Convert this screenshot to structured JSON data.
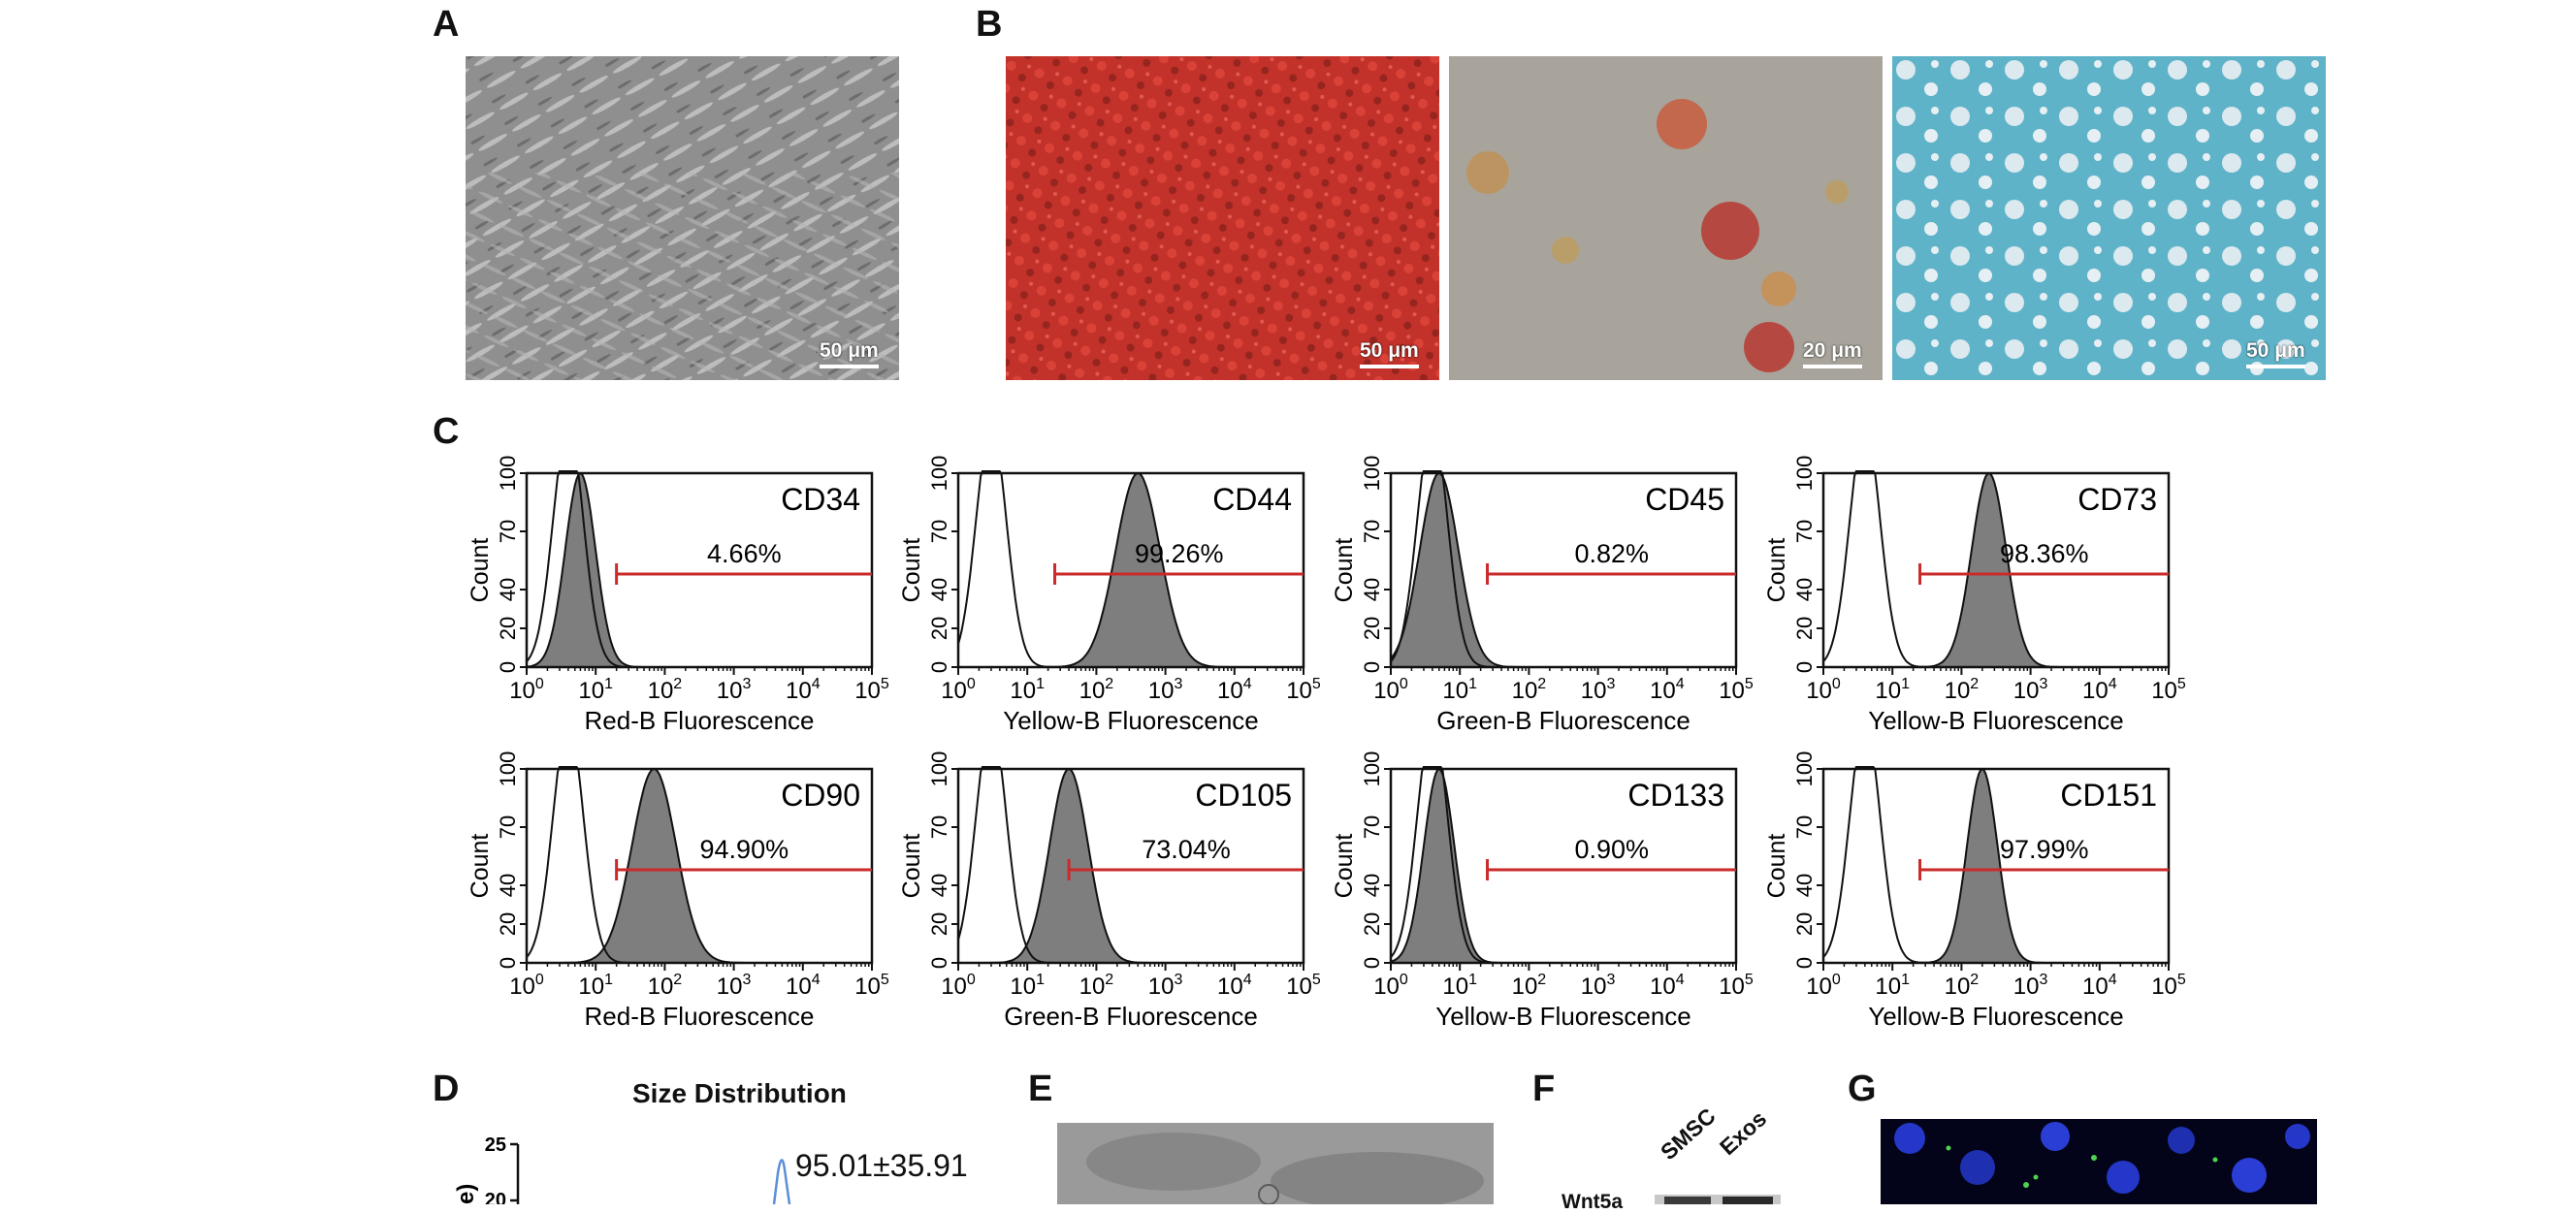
{
  "panels": {
    "A": "A",
    "B": "B",
    "C": "C",
    "D": "D",
    "E": "E",
    "F": "F",
    "G": "G"
  },
  "micrographs": {
    "a": {
      "scale": "50 μm",
      "bg": "#8f8f8f"
    },
    "b1": {
      "scale": "50 μm",
      "bg": "#c2322a"
    },
    "b2": {
      "scale": "20 μm",
      "bg": "#a8a49b"
    },
    "b3": {
      "scale": "50 μm",
      "bg": "#5fb3c8"
    }
  },
  "chart_data": [
    {
      "type": "area",
      "marker": "CD34",
      "percent": "4.66%",
      "ylabel": "Count",
      "xlabel": "Red-B Fluorescence",
      "yticks": [
        "0",
        "20",
        "40",
        "70",
        "100"
      ],
      "xscale": "log",
      "xlim": [
        1,
        100000
      ],
      "control_peak": 4,
      "sample_peak": 6,
      "sample_width": 0.22,
      "gate_start": 20
    },
    {
      "type": "area",
      "marker": "CD44",
      "percent": "99.26%",
      "ylabel": "Count",
      "xlabel": "Yellow-B Fluorescence",
      "yticks": [
        "0",
        "20",
        "40",
        "70",
        "100"
      ],
      "xscale": "log",
      "xlim": [
        1,
        100000
      ],
      "control_peak": 3,
      "sample_peak": 400,
      "sample_width": 0.32,
      "gate_start": 25
    },
    {
      "type": "area",
      "marker": "CD45",
      "percent": "0.82%",
      "ylabel": "Count",
      "xlabel": "Green-B Fluorescence",
      "yticks": [
        "0",
        "20",
        "40",
        "70",
        "100"
      ],
      "xscale": "log",
      "xlim": [
        1,
        100000
      ],
      "control_peak": 4,
      "sample_peak": 5,
      "sample_width": 0.28,
      "gate_start": 25
    },
    {
      "type": "area",
      "marker": "CD73",
      "percent": "98.36%",
      "ylabel": "Count",
      "xlabel": "Yellow-B Fluorescence",
      "yticks": [
        "0",
        "20",
        "40",
        "70",
        "100"
      ],
      "xscale": "log",
      "xlim": [
        1,
        100000
      ],
      "control_peak": 4,
      "sample_peak": 250,
      "sample_width": 0.25,
      "gate_start": 25
    },
    {
      "type": "area",
      "marker": "CD90",
      "percent": "94.90%",
      "ylabel": "Count",
      "xlabel": "Red-B Fluorescence",
      "yticks": [
        "0",
        "20",
        "40",
        "70",
        "100"
      ],
      "xscale": "log",
      "xlim": [
        1,
        100000
      ],
      "control_peak": 4,
      "sample_peak": 70,
      "sample_width": 0.32,
      "gate_start": 20
    },
    {
      "type": "area",
      "marker": "CD105",
      "percent": "73.04%",
      "ylabel": "Count",
      "xlabel": "Green-B Fluorescence",
      "yticks": [
        "0",
        "20",
        "40",
        "70",
        "100"
      ],
      "xscale": "log",
      "xlim": [
        1,
        100000
      ],
      "control_peak": 3,
      "sample_peak": 40,
      "sample_width": 0.28,
      "gate_start": 40
    },
    {
      "type": "area",
      "marker": "CD133",
      "percent": "0.90%",
      "ylabel": "Count",
      "xlabel": "Yellow-B Fluorescence",
      "yticks": [
        "0",
        "20",
        "40",
        "70",
        "100"
      ],
      "xscale": "log",
      "xlim": [
        1,
        100000
      ],
      "control_peak": 4,
      "sample_peak": 5,
      "sample_width": 0.22,
      "gate_start": 25
    },
    {
      "type": "area",
      "marker": "CD151",
      "percent": "97.99%",
      "ylabel": "Count",
      "xlabel": "Yellow-B Fluorescence",
      "yticks": [
        "0",
        "20",
        "40",
        "70",
        "100"
      ],
      "xscale": "log",
      "xlim": [
        1,
        100000
      ],
      "control_peak": 4,
      "sample_peak": 200,
      "sample_width": 0.22,
      "gate_start": 25
    }
  ],
  "panel_d": {
    "title": "Size Distribution",
    "annotation": "95.01±35.91",
    "y_tick_top": "25",
    "y_tick_next": "20",
    "ylabel_fragment": "e)"
  },
  "panel_f": {
    "lanes": [
      "SMSC",
      "Exos"
    ],
    "band_label": "Wnt5a"
  }
}
